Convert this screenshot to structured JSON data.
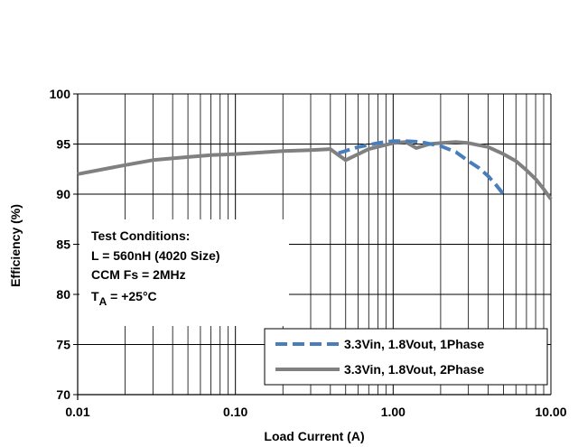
{
  "chart_data": {
    "type": "line",
    "xscale": "log",
    "xlim": [
      0.01,
      10
    ],
    "ylim": [
      70,
      100
    ],
    "xlabel": "Load Current (A)",
    "ylabel": "Efficiency (%)",
    "xticks": [
      0.01,
      0.1,
      1,
      10
    ],
    "xtick_labels": [
      "0.01",
      "0.10",
      "1.00",
      "10.00"
    ],
    "yticks": [
      70,
      75,
      80,
      85,
      90,
      95,
      100
    ],
    "ytick_labels": [
      "70",
      "75",
      "80",
      "85",
      "90",
      "95",
      "100"
    ],
    "grid": true,
    "legend_position": "bottom-right",
    "annotation": {
      "line1": "Test Conditions:",
      "line2": "L = 560nH (4020 Size)",
      "line3": "CCM Fs = 2MHz",
      "line4_main": "T",
      "line4_sub": "A",
      "line4_rest": " = +25°C"
    },
    "series": [
      {
        "name": "3.3Vin, 1.8Vout, 1Phase",
        "style": "dashed",
        "color": "#4a7ebb",
        "x": [
          0.45,
          0.6,
          0.8,
          1.0,
          1.2,
          1.5,
          2.0,
          2.5,
          3.0,
          3.5,
          4.0,
          4.5,
          5.0
        ],
        "y": [
          94.1,
          94.7,
          95.1,
          95.3,
          95.3,
          95.2,
          94.8,
          94.2,
          93.3,
          92.6,
          91.8,
          90.9,
          90.0
        ]
      },
      {
        "name": "3.3Vin, 1.8Vout, 2Phase",
        "style": "solid",
        "color": "#808080",
        "x": [
          0.01,
          0.02,
          0.03,
          0.05,
          0.07,
          0.1,
          0.2,
          0.3,
          0.4,
          0.45,
          0.5,
          0.7,
          1.0,
          1.2,
          1.4,
          1.7,
          2.0,
          2.5,
          3.0,
          4.0,
          5.0,
          6.0,
          7.0,
          8.0,
          9.0,
          10.0
        ],
        "y": [
          92.0,
          92.9,
          93.4,
          93.7,
          93.9,
          94.0,
          94.3,
          94.4,
          94.5,
          93.9,
          93.4,
          94.5,
          95.1,
          95.2,
          94.6,
          95.0,
          95.1,
          95.2,
          95.1,
          94.7,
          94.0,
          93.3,
          92.4,
          91.5,
          90.5,
          89.5
        ]
      }
    ]
  }
}
